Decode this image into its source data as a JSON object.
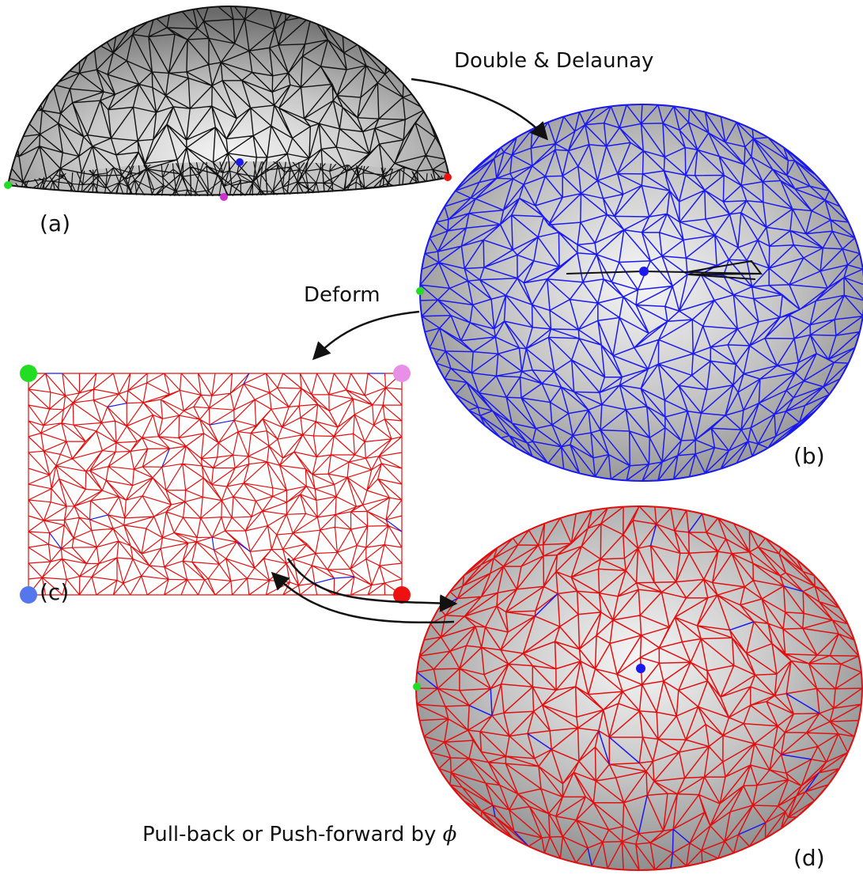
{
  "annotations": {
    "double_delaunay": "Double & Delaunay",
    "deform": "Deform",
    "pull_push": "Pull-back or Push-forward by",
    "phi": "ϕ"
  },
  "captions": {
    "a": "(a)",
    "b": "(b)",
    "c": "(c)",
    "d": "(d)"
  },
  "colors": {
    "mesh_black": "#111111",
    "mesh_blue": "#1a1aee",
    "mesh_red": "#e01010",
    "surface_dark": "#8f8f8f",
    "surface_light": "#e6e6e6",
    "corner_green": "#22dd22",
    "corner_violet": "#e890e8",
    "corner_blue": "#5577ee",
    "corner_red": "#ee1111"
  }
}
